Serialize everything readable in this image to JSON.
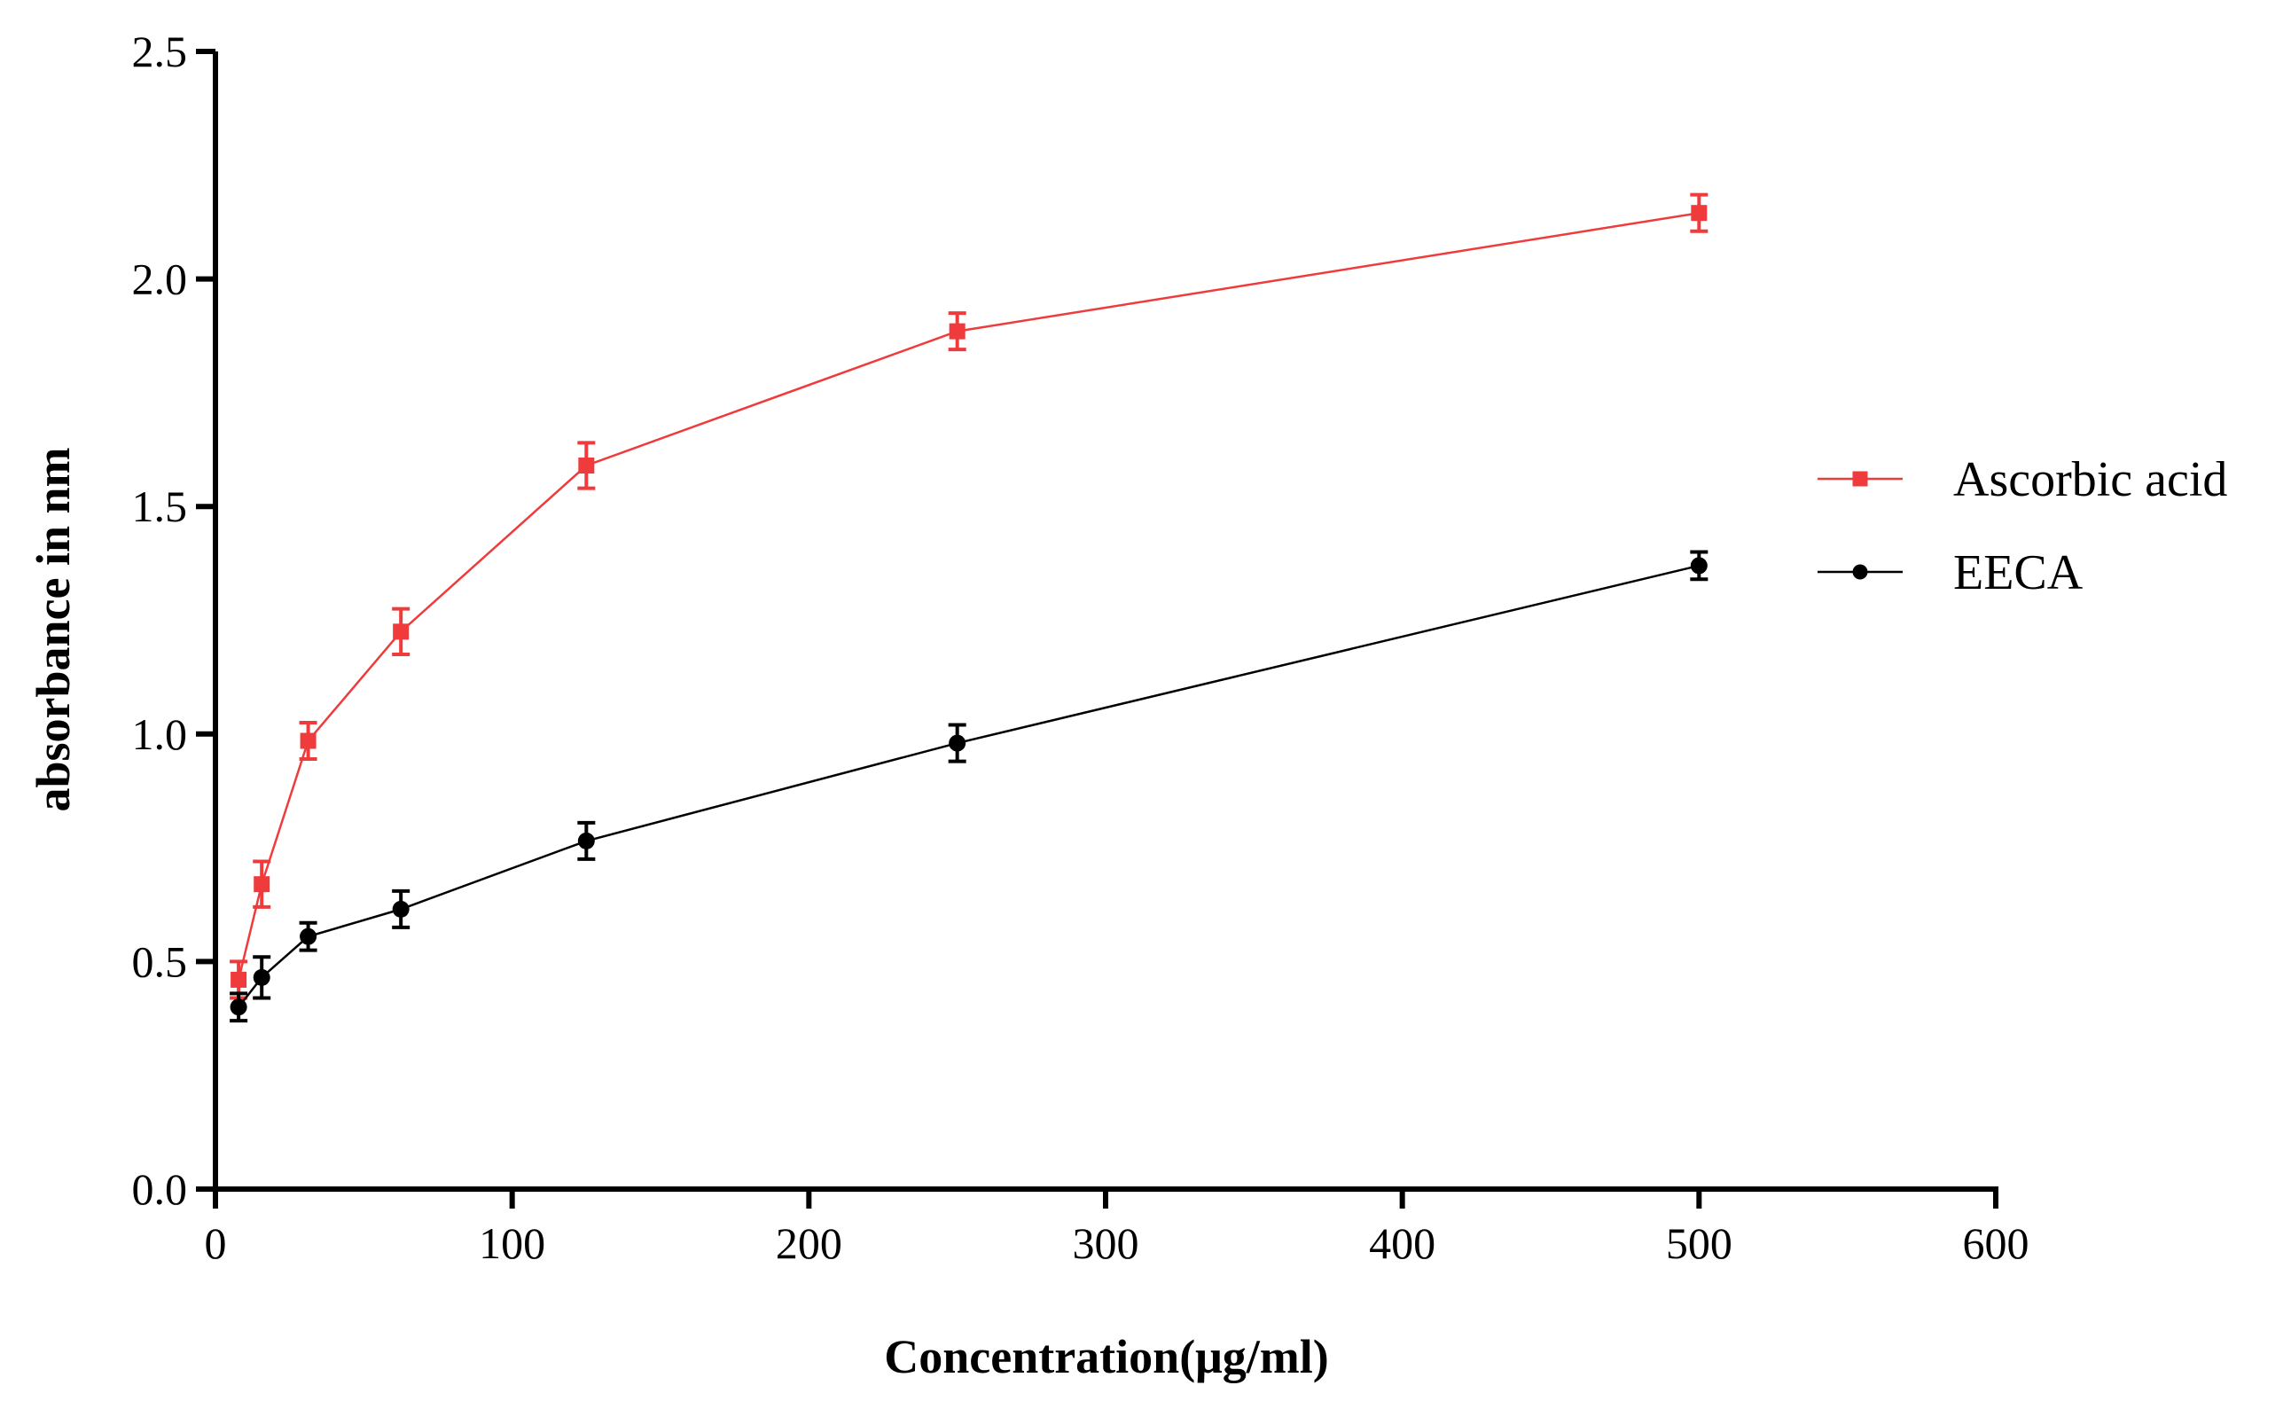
{
  "chart_data": {
    "type": "line",
    "title": "",
    "xlabel": "Concentration(μg/ml)",
    "ylabel": "absorbance in nm",
    "xlim": [
      0,
      600
    ],
    "ylim": [
      0,
      2.5
    ],
    "xticks": [
      0,
      100,
      200,
      300,
      400,
      500,
      600
    ],
    "xtick_labels": [
      "0",
      "100",
      "200",
      "300",
      "400",
      "500",
      "600"
    ],
    "yticks": [
      0,
      0.5,
      1.0,
      1.5,
      2.0,
      2.5
    ],
    "ytick_labels": [
      "0.0",
      "0.5",
      "1.0",
      "1.5",
      "2.0",
      "2.5"
    ],
    "grid": false,
    "legend_position": "right",
    "series": [
      {
        "name": "Ascorbic acid",
        "color": "#ef3b3b",
        "marker": "square",
        "x": [
          7.8,
          15.6,
          31.25,
          62.5,
          125,
          250,
          500
        ],
        "y": [
          0.46,
          0.67,
          0.985,
          1.225,
          1.59,
          1.885,
          2.145
        ],
        "error": [
          0.04,
          0.05,
          0.04,
          0.05,
          0.05,
          0.04,
          0.04
        ]
      },
      {
        "name": "EECA",
        "color": "#000000",
        "marker": "circle",
        "x": [
          7.8,
          15.6,
          31.25,
          62.5,
          125,
          250,
          500
        ],
        "y": [
          0.4,
          0.465,
          0.555,
          0.615,
          0.765,
          0.98,
          1.37
        ],
        "error": [
          0.03,
          0.045,
          0.03,
          0.04,
          0.04,
          0.04,
          0.03
        ]
      }
    ]
  }
}
